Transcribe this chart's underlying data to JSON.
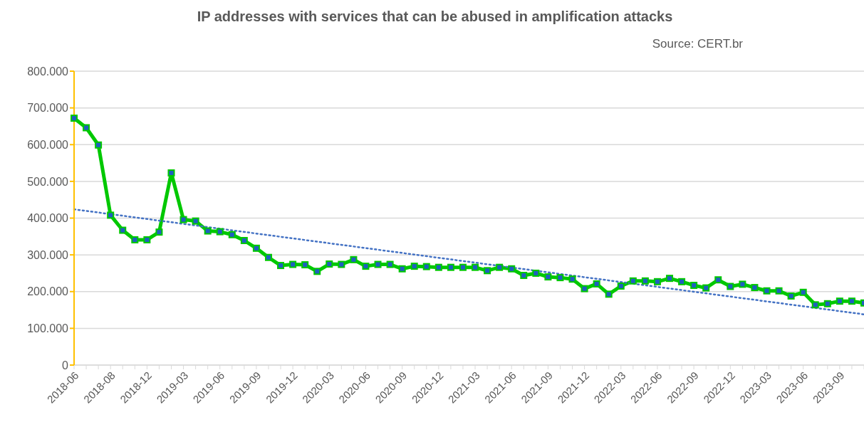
{
  "chart_data": {
    "type": "line",
    "title": "IP addresses with services that can be abused in amplification attacks",
    "annotations": [
      "Source: CERT.br"
    ],
    "categories": [
      "2018-06",
      null,
      null,
      "2018-08",
      null,
      null,
      "2018-12",
      null,
      null,
      "2019-03",
      null,
      null,
      "2019-06",
      null,
      null,
      "2019-09",
      null,
      null,
      "2019-12",
      null,
      null,
      "2020-03",
      null,
      null,
      "2020-06",
      null,
      null,
      "2020-09",
      null,
      null,
      "2020-12",
      null,
      null,
      "2021-03",
      null,
      null,
      "2021-06",
      null,
      null,
      "2021-09",
      null,
      null,
      "2021-12",
      null,
      null,
      "2022-03",
      null,
      null,
      "2022-06",
      null,
      null,
      "2022-09",
      null,
      null,
      "2022-12",
      null,
      null,
      "2023-03",
      null,
      null,
      "2023-06",
      null,
      null,
      "2023-09",
      null,
      null
    ],
    "series": [
      {
        "color": "#00c800",
        "marker": "square",
        "line_style": "solid",
        "values": [
          672000,
          646000,
          599000,
          408000,
          367000,
          341000,
          341000,
          362000,
          523000,
          396000,
          392000,
          365000,
          363000,
          355000,
          339000,
          318000,
          293000,
          271000,
          274000,
          273000,
          255000,
          275000,
          274000,
          287000,
          269000,
          274000,
          274000,
          262000,
          269000,
          268000,
          266000,
          266000,
          266000,
          266000,
          257000,
          266000,
          262000,
          244000,
          250000,
          240000,
          238000,
          234000,
          208000,
          221000,
          193000,
          215000,
          229000,
          229000,
          227000,
          236000,
          227000,
          217000,
          210000,
          232000,
          214000,
          220000,
          211000,
          202000,
          202000,
          188000,
          198000,
          164000,
          167000,
          174000,
          174000,
          169000
        ]
      },
      {
        "type": "line",
        "color": "#4472c4",
        "marker": "none",
        "line_style": "dotted",
        "values": [
          424000,
          null,
          null,
          null,
          null,
          null,
          null,
          null,
          null,
          null,
          null,
          null,
          null,
          null,
          null,
          null,
          null,
          null,
          null,
          null,
          null,
          null,
          null,
          null,
          null,
          null,
          null,
          null,
          null,
          null,
          null,
          null,
          null,
          null,
          null,
          null,
          null,
          null,
          null,
          null,
          null,
          null,
          null,
          null,
          null,
          null,
          null,
          null,
          null,
          null,
          null,
          null,
          null,
          null,
          null,
          null,
          null,
          null,
          null,
          null,
          null,
          null,
          null,
          null,
          null,
          138000
        ]
      }
    ],
    "ylim": [
      0,
      800000
    ],
    "yticks": [
      {
        "value": 0,
        "label": "0"
      },
      {
        "value": 100000,
        "label": "100.000"
      },
      {
        "value": 200000,
        "label": "200.000"
      },
      {
        "value": 300000,
        "label": "300.000"
      },
      {
        "value": 400000,
        "label": "400.000"
      },
      {
        "value": 500000,
        "label": "500.000"
      },
      {
        "value": 600000,
        "label": "600.000"
      },
      {
        "value": 700000,
        "label": "700.000"
      },
      {
        "value": 800000,
        "label": "800.000"
      }
    ],
    "grid": "y"
  }
}
